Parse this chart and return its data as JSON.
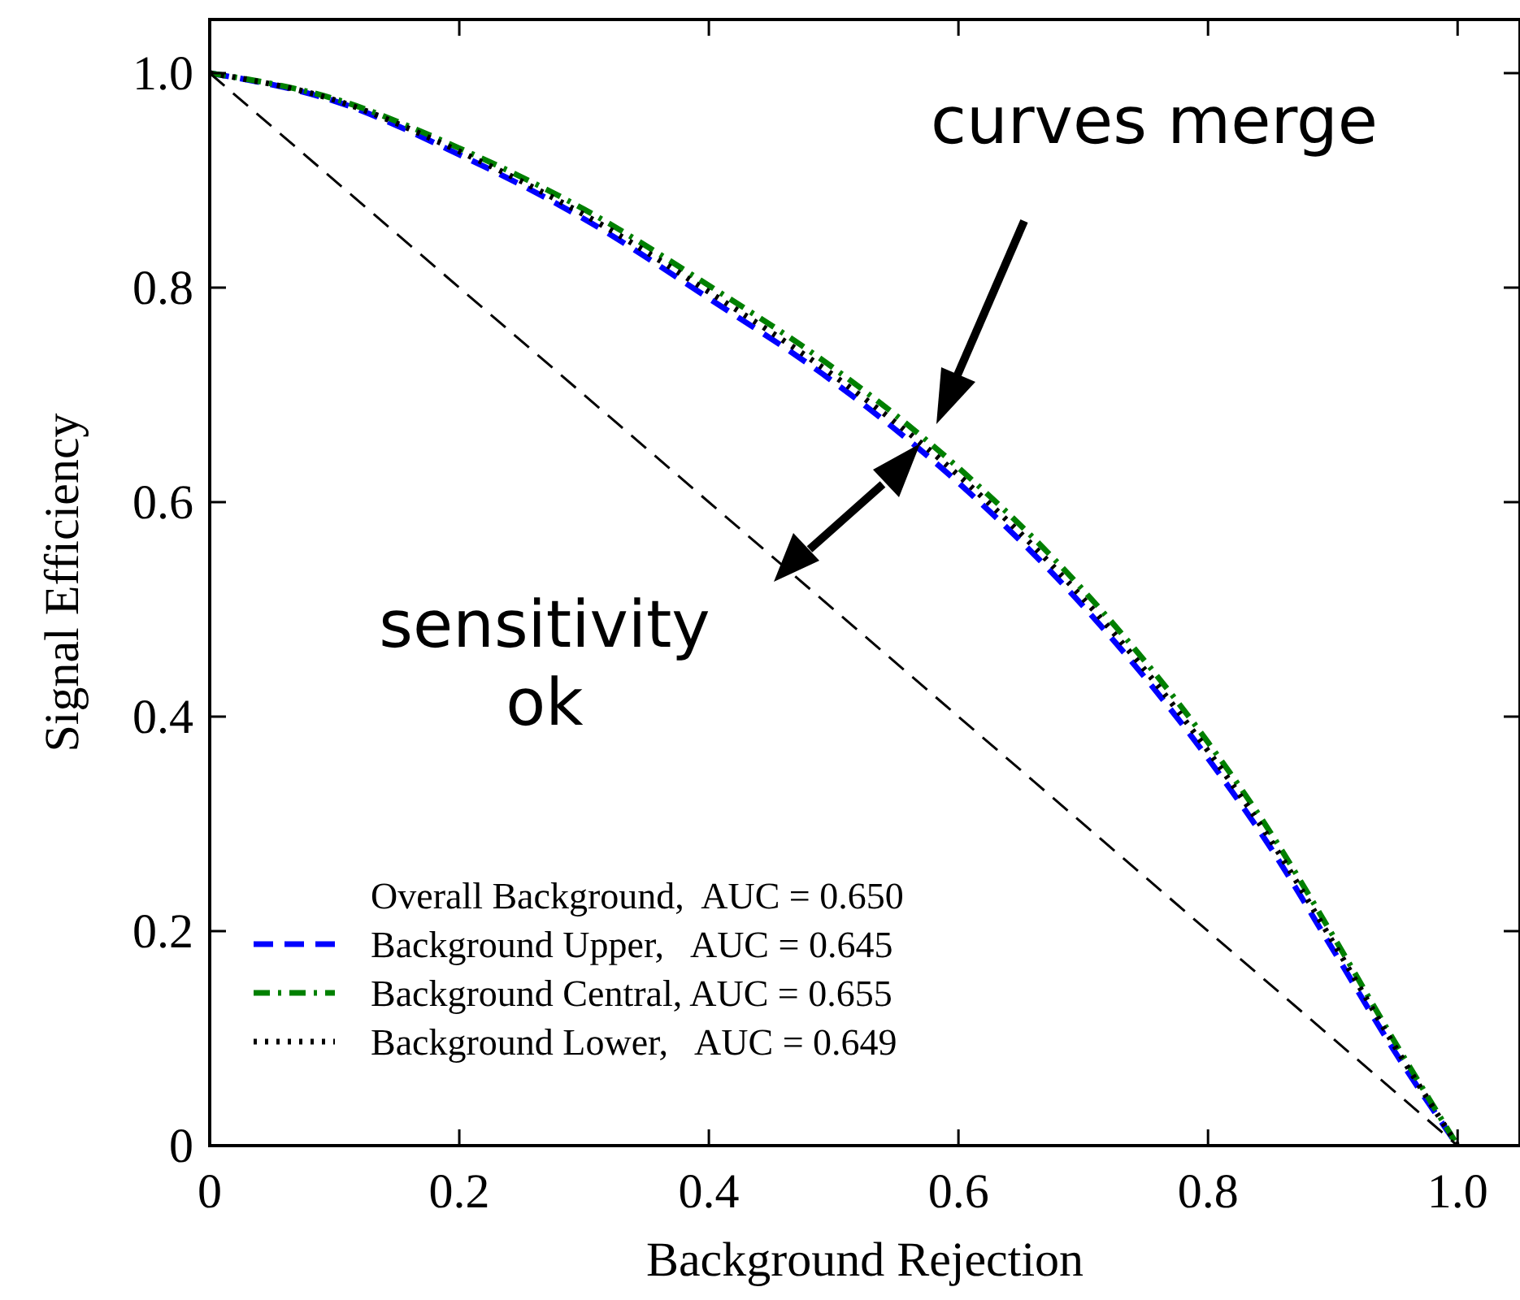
{
  "chart_data": {
    "type": "line",
    "xlabel": "Background Rejection",
    "ylabel": "Signal Efficiency",
    "x": [
      0,
      0.1,
      0.2,
      0.3,
      0.4,
      0.5,
      0.6,
      0.7,
      0.8,
      0.85,
      0.9,
      0.95,
      1.0
    ],
    "series": [
      {
        "name": "Background Upper,   AUC = 0.645",
        "color": "#0000ff",
        "line_style": "dashed",
        "values": [
          1,
          0.974,
          0.924,
          0.864,
          0.79,
          0.712,
          0.618,
          0.503,
          0.361,
          0.278,
          0.183,
          0.087,
          0
        ]
      },
      {
        "name": "Background Central, AUC = 0.655",
        "color": "#008000",
        "line_style": "dashdot",
        "values": [
          1,
          0.976,
          0.93,
          0.873,
          0.802,
          0.725,
          0.632,
          0.518,
          0.376,
          0.292,
          0.196,
          0.096,
          0
        ]
      },
      {
        "name": "Background Lower,   AUC = 0.649",
        "color": "#000000",
        "line_style": "dotted",
        "values": [
          1,
          0.975,
          0.927,
          0.868,
          0.796,
          0.718,
          0.625,
          0.51,
          0.368,
          0.285,
          0.19,
          0.092,
          0
        ]
      },
      {
        "color": "#000000",
        "line_style": "dashed",
        "x": [
          0,
          1
        ],
        "values": [
          1,
          0
        ]
      }
    ],
    "legend": "bottom left",
    "legend_title": "Overall Background,  AUC = 0.650",
    "xlim": [
      0,
      1.05
    ],
    "ylim": [
      0,
      1.05
    ],
    "xticks": [
      {
        "value": 0,
        "label": "0"
      },
      0.2,
      0.4,
      0.6,
      0.8,
      {
        "value": 1,
        "label": "1.0"
      }
    ],
    "yticks": [
      {
        "value": 0,
        "label": "0"
      },
      0.2,
      0.4,
      0.6,
      0.8,
      {
        "value": 1,
        "label": "1.0"
      }
    ],
    "grid": false,
    "marker": "none",
    "annotations": [
      "curves merge",
      "sensitivity\nok"
    ]
  }
}
